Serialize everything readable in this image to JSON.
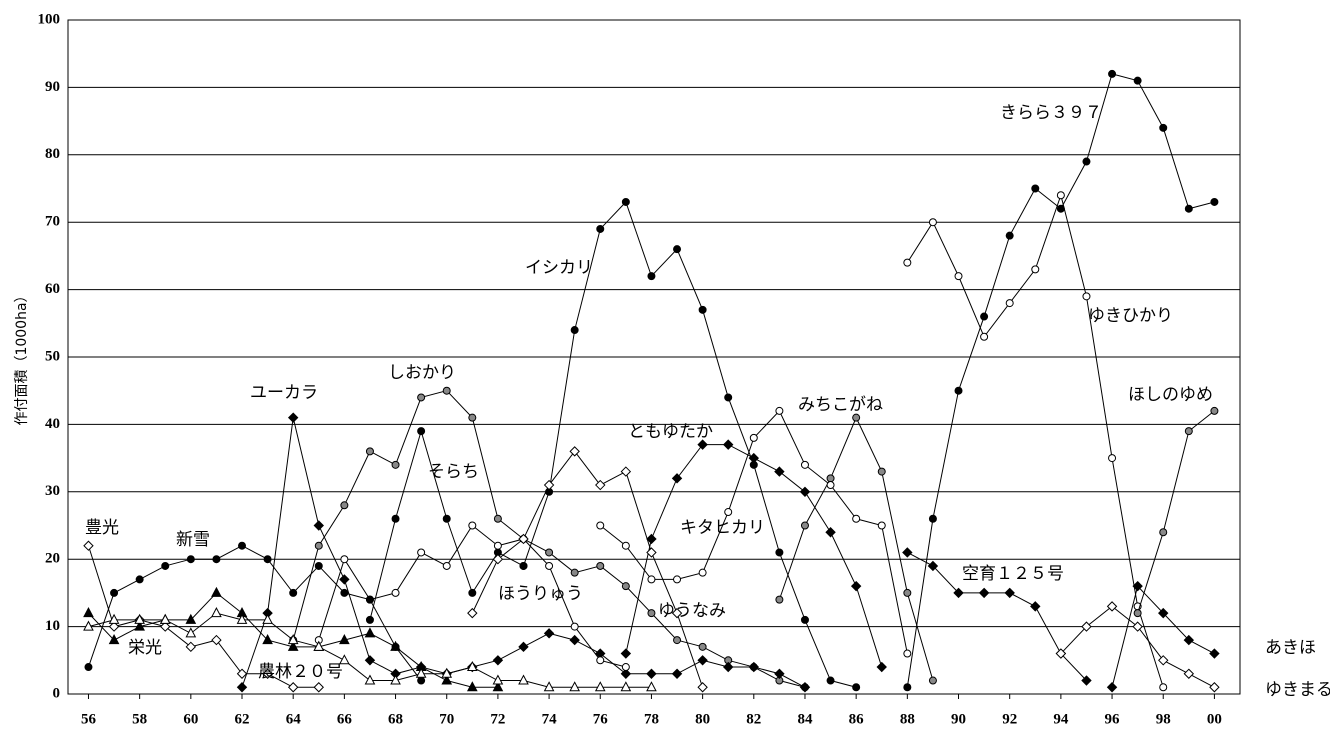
{
  "chart_data": {
    "type": "line",
    "y_label": "作付面積（1000ha）",
    "xlim": [
      55.2,
      101
    ],
    "ylim": [
      0,
      100
    ],
    "xticks": [
      56,
      58,
      60,
      62,
      64,
      66,
      68,
      70,
      72,
      74,
      76,
      78,
      80,
      82,
      84,
      86,
      88,
      90,
      92,
      94,
      96,
      98,
      {
        "value": 100,
        "label": "00"
      }
    ],
    "yticks": [
      0,
      10,
      20,
      30,
      40,
      50,
      60,
      70,
      80,
      90,
      100
    ],
    "grid": true,
    "series": [
      {
        "name": "きらら３９７",
        "marker": "circle",
        "color": "#000000",
        "x": [
          88,
          89,
          90,
          91,
          92,
          93,
          94,
          95,
          96,
          97,
          98,
          99,
          100
        ],
        "values": [
          1,
          26,
          45,
          56,
          68,
          75,
          72,
          79,
          92,
          91,
          84,
          72,
          73
        ]
      },
      {
        "name": "イシカリ",
        "marker": "circle",
        "color": "#000000",
        "x": [
          73,
          74,
          75,
          76,
          77,
          78,
          79,
          80,
          81,
          82,
          83,
          84,
          85,
          86
        ],
        "values": [
          19,
          30,
          54,
          69,
          73,
          62,
          66,
          57,
          44,
          34,
          21,
          11,
          2,
          1
        ]
      },
      {
        "name": "ゆきひかり",
        "marker": "circle",
        "color": "#ffffff",
        "x": [
          88,
          89,
          90,
          91,
          92,
          93,
          94,
          95,
          96,
          97,
          98
        ],
        "values": [
          64,
          70,
          62,
          53,
          58,
          63,
          74,
          59,
          35,
          13,
          1
        ]
      },
      {
        "name": "ほしのゆめ",
        "marker": "circle",
        "color": "#888888",
        "x": [
          97,
          98,
          99,
          100
        ],
        "values": [
          12,
          24,
          39,
          42
        ]
      },
      {
        "name": "みちこがね",
        "marker": "circle",
        "color": "#888888",
        "x": [
          83,
          84,
          85,
          86,
          87,
          88,
          89
        ],
        "values": [
          14,
          25,
          32,
          41,
          33,
          15,
          2
        ]
      },
      {
        "name": "しおかり",
        "marker": "circle",
        "color": "#888888",
        "x": [
          64,
          65,
          66,
          67,
          68,
          69,
          70,
          71,
          72,
          73,
          74,
          75,
          76,
          77,
          78,
          79,
          80,
          81,
          82,
          83,
          84
        ],
        "values": [
          8,
          22,
          28,
          36,
          34,
          44,
          45,
          41,
          26,
          23,
          21,
          18,
          19,
          16,
          12,
          8,
          7,
          5,
          4,
          2,
          1
        ]
      },
      {
        "name": "ユーカラ",
        "marker": "diamond",
        "color": "#000000",
        "x": [
          62,
          63,
          64,
          65,
          66,
          67,
          68,
          69,
          70,
          71,
          72,
          73,
          74,
          75,
          76,
          77,
          78,
          79,
          80,
          81,
          82,
          83,
          84
        ],
        "values": [
          1,
          12,
          41,
          25,
          17,
          5,
          3,
          4,
          3,
          4,
          5,
          7,
          9,
          8,
          6,
          3,
          3,
          3,
          5,
          4,
          4,
          3,
          1
        ]
      },
      {
        "name": "ともゆたか",
        "marker": "diamond",
        "color": "#000000",
        "x": [
          77,
          78,
          79,
          80,
          81,
          82,
          83,
          84,
          85,
          86,
          87
        ],
        "values": [
          6,
          23,
          32,
          37,
          37,
          35,
          33,
          30,
          24,
          16,
          4
        ]
      },
      {
        "name": "そらち",
        "marker": "circle",
        "color": "#000000",
        "x": [
          67,
          68,
          69,
          70,
          71,
          72,
          73
        ],
        "values": [
          11,
          26,
          39,
          26,
          15,
          21,
          19
        ]
      },
      {
        "name": "キタヒカリ",
        "marker": "circle",
        "color": "#ffffff",
        "x": [
          76,
          77,
          78,
          79,
          80,
          81,
          82,
          83,
          84,
          85,
          86,
          87,
          88
        ],
        "values": [
          25,
          22,
          17,
          17,
          18,
          27,
          38,
          42,
          34,
          31,
          26,
          25,
          6
        ]
      },
      {
        "name": "空育１２５号",
        "marker": "diamond",
        "color": "#000000",
        "x": [
          88,
          89,
          90,
          91,
          92,
          93,
          94,
          95
        ],
        "values": [
          21,
          19,
          15,
          15,
          15,
          13,
          6,
          2
        ]
      },
      {
        "name": "ほうりゅう",
        "marker": "circle",
        "color": "#ffffff",
        "x": [
          65,
          66,
          67,
          68,
          69,
          70,
          71,
          72,
          73,
          74,
          75,
          76,
          77
        ],
        "values": [
          8,
          20,
          14,
          15,
          21,
          19,
          25,
          22,
          23,
          19,
          10,
          5,
          4
        ]
      },
      {
        "name": "ゆうなみ",
        "marker": "diamond",
        "color": "#ffffff",
        "x": [
          71,
          72,
          73,
          74,
          75,
          76,
          77,
          78,
          79,
          80
        ],
        "values": [
          12,
          20,
          23,
          31,
          36,
          31,
          33,
          21,
          12,
          1
        ]
      },
      {
        "name": "豊光",
        "marker": "diamond",
        "color": "#ffffff",
        "x": [
          56,
          57,
          58,
          59,
          60,
          61,
          62,
          63,
          64,
          65
        ],
        "values": [
          22,
          10,
          11,
          10,
          7,
          8,
          3,
          3,
          1,
          1
        ]
      },
      {
        "name": "新雪",
        "marker": "circle",
        "color": "#000000",
        "x": [
          56,
          57,
          58,
          59,
          60,
          61,
          62,
          63,
          64,
          65,
          66,
          67,
          68,
          69
        ],
        "values": [
          4,
          15,
          17,
          19,
          20,
          20,
          22,
          20,
          15,
          19,
          15,
          14,
          7,
          2
        ]
      },
      {
        "name": "栄光",
        "marker": "triangle",
        "color": "#000000",
        "x": [
          56,
          57,
          58,
          59,
          60,
          61,
          62,
          63,
          64,
          65,
          66,
          67,
          68,
          69,
          70,
          71,
          72
        ],
        "values": [
          12,
          8,
          10,
          11,
          11,
          15,
          12,
          8,
          7,
          7,
          8,
          9,
          7,
          4,
          2,
          1,
          1
        ]
      },
      {
        "name": "農林２０号",
        "marker": "triangle",
        "color": "#ffffff",
        "x": [
          56,
          57,
          58,
          59,
          60,
          61,
          62,
          63,
          64,
          65,
          66,
          67,
          68,
          69,
          70,
          71,
          72,
          73,
          74,
          75,
          76,
          77,
          78
        ],
        "values": [
          10,
          11,
          11,
          11,
          9,
          12,
          11,
          11,
          8,
          7,
          5,
          2,
          2,
          3,
          3,
          4,
          2,
          2,
          1,
          1,
          1,
          1,
          1
        ]
      },
      {
        "name": "あきほ",
        "marker": "diamond",
        "color": "#000000",
        "x": [
          96,
          97,
          98,
          99,
          100
        ],
        "values": [
          1,
          16,
          12,
          8,
          6
        ]
      },
      {
        "name": "ゆきまる",
        "marker": "diamond",
        "color": "#ffffff",
        "x": [
          94,
          95,
          96,
          97,
          98,
          99,
          100
        ],
        "values": [
          6,
          10,
          13,
          10,
          5,
          3,
          1
        ]
      }
    ]
  }
}
